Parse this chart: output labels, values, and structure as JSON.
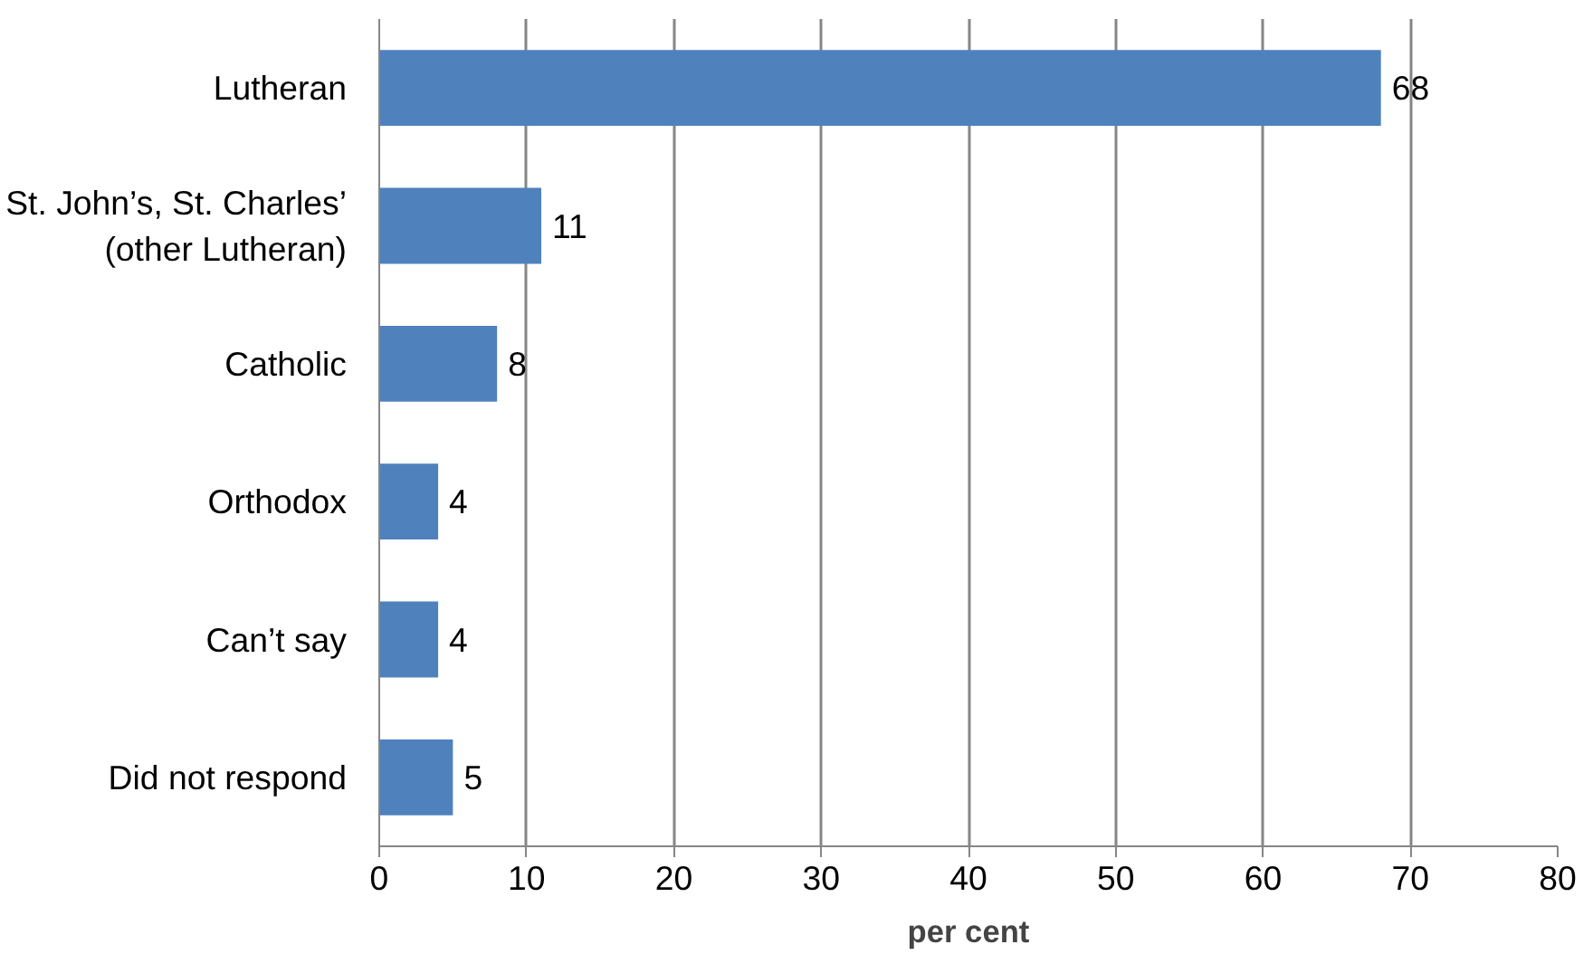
{
  "chart_data": {
    "type": "bar",
    "orientation": "horizontal",
    "xlabel": "per cent",
    "categories": [
      "Lutheran",
      "St. John’s, St. Charles’\n(other Lutheran)",
      "Catholic",
      "Orthodox",
      "Can’t say",
      "Did not respond"
    ],
    "values": [
      68,
      11,
      8,
      4,
      4,
      5
    ],
    "color": "#4f81bd",
    "data_labels": true,
    "xlim": [
      0,
      80
    ],
    "xticks": [
      0,
      10,
      20,
      30,
      40,
      50,
      60,
      70,
      80
    ],
    "grid": "x"
  }
}
